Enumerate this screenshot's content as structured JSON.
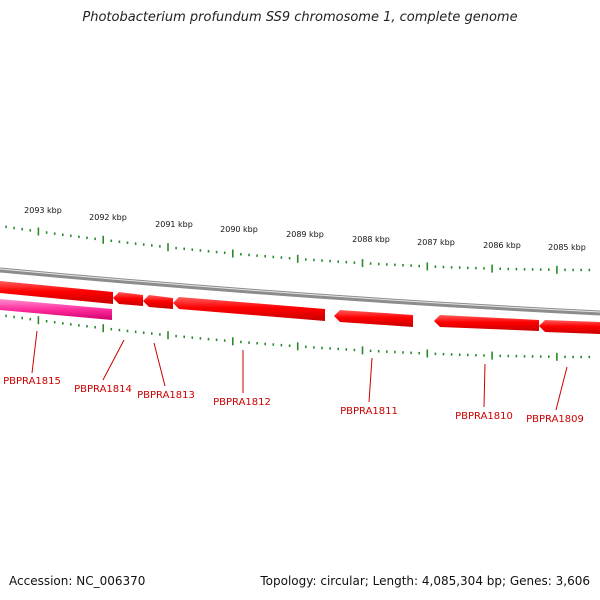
{
  "title": "Photobacterium profundum SS9 chromosome 1, complete genome",
  "footer": {
    "accession": "Accession: NC_006370",
    "summary": "Topology: circular; Length: 4,085,304 bp; Genes: 3,606"
  },
  "colors": {
    "gene_fill": "#ff0000",
    "gene_highlight": "#ff2d9c",
    "gene_label": "#cc0000",
    "tick": "#2a8a2a",
    "backbone": "#8c8c8c"
  },
  "scale_ticks": [
    "2093 kbp",
    "2092 kbp",
    "2091 kbp",
    "2090 kbp",
    "2089 kbp",
    "2088 kbp",
    "2087 kbp",
    "2086 kbp",
    "2085 kbp"
  ],
  "genes": [
    {
      "label": "PBPRA1815",
      "highlight": true
    },
    {
      "label": "PBPRA1814",
      "highlight": false
    },
    {
      "label": "PBPRA1813",
      "highlight": false
    },
    {
      "label": "PBPRA1812",
      "highlight": false
    },
    {
      "label": "PBPRA1811",
      "highlight": false
    },
    {
      "label": "PBPRA1810",
      "highlight": false
    },
    {
      "label": "PBPRA1809",
      "highlight": false
    }
  ]
}
